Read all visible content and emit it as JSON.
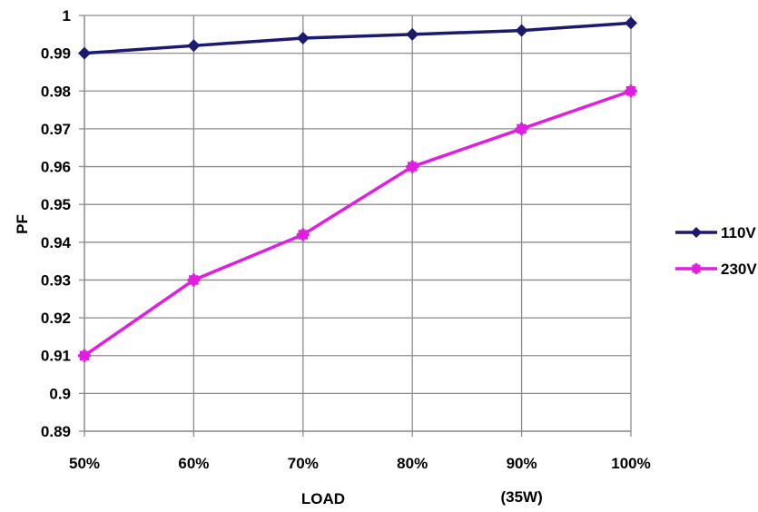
{
  "chart_data": {
    "type": "line",
    "categories": [
      "50%",
      "60%",
      "70%",
      "80%",
      "90%",
      "100%"
    ],
    "x_sublabel": "(35W)",
    "xlabel": "LOAD",
    "ylabel": "PF",
    "ylim": [
      0.89,
      1
    ],
    "yticks": [
      0.89,
      0.9,
      0.91,
      0.92,
      0.93,
      0.94,
      0.95,
      0.96,
      0.97,
      0.98,
      0.99,
      1
    ],
    "ytick_labels": [
      "0.89",
      "0.9",
      "0.91",
      "0.92",
      "0.93",
      "0.94",
      "0.95",
      "0.96",
      "0.97",
      "0.98",
      "0.99",
      "1"
    ],
    "grid": true,
    "legend_position": "right",
    "series": [
      {
        "name": "110V",
        "values": [
          0.99,
          0.992,
          0.994,
          0.995,
          0.996,
          0.998
        ],
        "color": "#1a1a6e",
        "marker": "diamond"
      },
      {
        "name": "230V",
        "values": [
          0.91,
          0.93,
          0.942,
          0.96,
          0.97,
          0.98
        ],
        "color": "#e01ee0",
        "marker": "square-star"
      }
    ]
  }
}
